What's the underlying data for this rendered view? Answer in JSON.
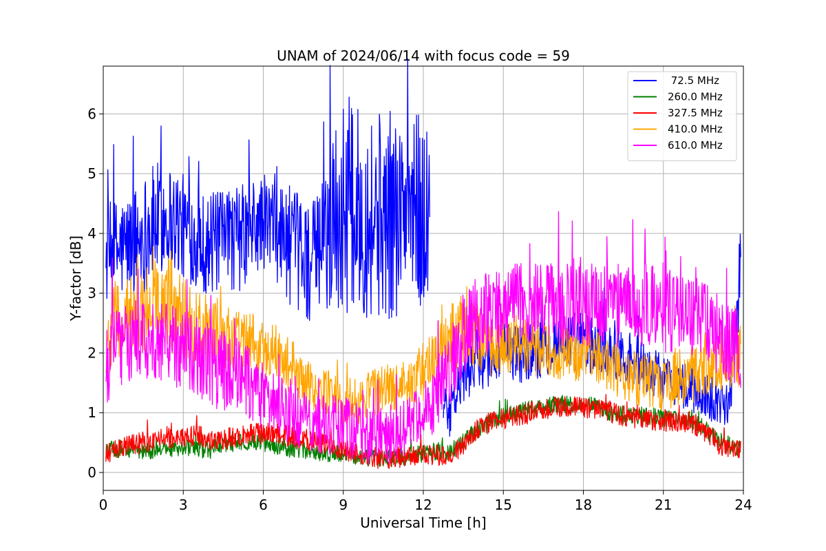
{
  "chart_data": {
    "type": "line",
    "title": "UNAM of 2024/06/14 with focus code = 59",
    "xlabel": "Universal Time [h]",
    "ylabel": "Y-factor [dB]",
    "xlim": [
      0,
      24
    ],
    "ylim": [
      -0.3,
      6.8
    ],
    "xticks": [
      0,
      3,
      6,
      9,
      12,
      15,
      18,
      21,
      24
    ],
    "yticks": [
      0,
      1,
      2,
      3,
      4,
      5,
      6
    ],
    "grid": true,
    "legend_position": "top-right",
    "x": [
      0.1,
      0.5,
      1.0,
      1.5,
      2.0,
      2.5,
      3.0,
      3.5,
      4.0,
      4.5,
      5.0,
      5.5,
      6.0,
      6.5,
      7.0,
      7.5,
      8.0,
      8.5,
      9.0,
      9.5,
      10.0,
      10.5,
      11.0,
      11.5,
      12.0,
      12.5,
      13.0,
      13.5,
      14.0,
      14.5,
      15.0,
      15.5,
      16.0,
      16.5,
      17.0,
      17.5,
      18.0,
      18.5,
      19.0,
      19.5,
      20.0,
      20.5,
      21.0,
      21.5,
      22.0,
      22.5,
      23.0,
      23.5,
      23.9
    ],
    "series": [
      {
        "name": " 72.5 MHz",
        "color": "#0000ff",
        "mean": [
          3.6,
          3.7,
          3.8,
          4.0,
          4.2,
          4.3,
          4.1,
          3.9,
          3.8,
          3.9,
          3.9,
          4.0,
          4.2,
          4.1,
          3.8,
          3.6,
          3.5,
          4.2,
          4.4,
          4.4,
          4.3,
          4.3,
          4.3,
          4.4,
          4.3,
          null,
          1.0,
          1.6,
          1.9,
          1.9,
          2.0,
          2.0,
          2.0,
          2.1,
          2.2,
          2.2,
          2.2,
          2.1,
          2.1,
          2.0,
          1.8,
          1.7,
          1.6,
          1.5,
          1.4,
          1.3,
          1.2,
          1.2,
          3.5
        ],
        "spread": [
          0.9,
          0.9,
          0.9,
          1.0,
          1.0,
          0.9,
          0.9,
          0.8,
          0.9,
          0.8,
          0.9,
          0.9,
          0.8,
          0.9,
          1.0,
          1.0,
          1.1,
          1.6,
          1.8,
          1.7,
          1.8,
          1.8,
          1.7,
          1.8,
          1.7,
          null,
          0.4,
          0.5,
          0.5,
          0.5,
          0.5,
          0.5,
          0.5,
          0.5,
          0.5,
          0.5,
          0.5,
          0.5,
          0.5,
          0.5,
          0.5,
          0.4,
          0.4,
          0.4,
          0.4,
          0.4,
          0.4,
          0.4,
          0.7
        ]
      },
      {
        "name": "260.0 MHz",
        "color": "#008000",
        "mean": [
          0.35,
          0.4,
          0.38,
          0.35,
          0.35,
          0.38,
          0.4,
          0.38,
          0.38,
          0.45,
          0.5,
          0.52,
          0.5,
          0.45,
          0.4,
          0.38,
          0.35,
          0.32,
          0.3,
          0.28,
          0.25,
          0.22,
          0.25,
          0.28,
          0.32,
          0.35,
          0.35,
          0.5,
          0.7,
          0.85,
          0.95,
          1.0,
          1.05,
          1.1,
          1.15,
          1.15,
          1.15,
          1.1,
          1.0,
          0.95,
          0.95,
          0.95,
          0.9,
          0.9,
          0.9,
          0.75,
          0.55,
          0.45,
          0.4
        ],
        "spread": [
          0.15,
          0.15,
          0.15,
          0.15,
          0.15,
          0.15,
          0.15,
          0.15,
          0.15,
          0.15,
          0.15,
          0.15,
          0.15,
          0.15,
          0.15,
          0.15,
          0.15,
          0.15,
          0.15,
          0.15,
          0.15,
          0.15,
          0.15,
          0.15,
          0.15,
          0.15,
          0.15,
          0.15,
          0.15,
          0.15,
          0.15,
          0.15,
          0.15,
          0.15,
          0.15,
          0.15,
          0.15,
          0.15,
          0.15,
          0.15,
          0.15,
          0.15,
          0.15,
          0.15,
          0.15,
          0.15,
          0.15,
          0.15,
          0.15
        ]
      },
      {
        "name": "327.5 MHz",
        "color": "#ff0000",
        "mean": [
          0.3,
          0.4,
          0.45,
          0.5,
          0.55,
          0.58,
          0.6,
          0.62,
          0.55,
          0.55,
          0.6,
          0.65,
          0.65,
          0.65,
          0.6,
          0.55,
          0.5,
          0.45,
          0.4,
          0.3,
          0.25,
          0.22,
          0.25,
          0.28,
          0.3,
          0.3,
          0.28,
          0.45,
          0.7,
          0.85,
          0.9,
          0.95,
          1.0,
          1.05,
          1.1,
          1.1,
          1.1,
          1.05,
          1.0,
          0.95,
          0.9,
          0.9,
          0.85,
          0.85,
          0.85,
          0.7,
          0.5,
          0.4,
          0.35
        ],
        "spread": [
          0.18,
          0.18,
          0.18,
          0.18,
          0.18,
          0.18,
          0.18,
          0.18,
          0.18,
          0.18,
          0.18,
          0.18,
          0.18,
          0.18,
          0.18,
          0.18,
          0.18,
          0.18,
          0.18,
          0.18,
          0.18,
          0.18,
          0.18,
          0.18,
          0.18,
          0.18,
          0.18,
          0.18,
          0.18,
          0.18,
          0.18,
          0.18,
          0.18,
          0.18,
          0.18,
          0.18,
          0.18,
          0.18,
          0.18,
          0.18,
          0.18,
          0.18,
          0.18,
          0.18,
          0.18,
          0.18,
          0.18,
          0.18,
          0.18
        ]
      },
      {
        "name": "410.0 MHz",
        "color": "#ffa500",
        "mean": [
          2.0,
          2.6,
          2.6,
          2.7,
          2.7,
          2.8,
          2.6,
          2.4,
          2.4,
          2.3,
          2.2,
          2.2,
          2.1,
          2.0,
          1.8,
          1.5,
          1.4,
          1.3,
          1.2,
          1.2,
          1.3,
          1.4,
          1.4,
          1.5,
          1.7,
          1.9,
          2.2,
          2.4,
          2.3,
          2.1,
          2.1,
          2.2,
          2.1,
          2.1,
          2.0,
          2.0,
          2.0,
          2.0,
          1.8,
          1.7,
          1.5,
          1.5,
          1.5,
          1.6,
          1.6,
          1.7,
          1.8,
          1.9,
          2.0
        ],
        "spread": [
          0.6,
          0.7,
          0.7,
          0.7,
          0.8,
          0.8,
          0.7,
          0.6,
          0.6,
          0.6,
          0.5,
          0.5,
          0.5,
          0.5,
          0.5,
          0.4,
          0.4,
          0.4,
          0.4,
          0.4,
          0.4,
          0.4,
          0.4,
          0.4,
          0.5,
          0.5,
          0.6,
          0.6,
          0.6,
          0.5,
          0.5,
          0.5,
          0.5,
          0.5,
          0.5,
          0.5,
          0.5,
          0.5,
          0.5,
          0.5,
          0.5,
          0.5,
          0.5,
          0.5,
          0.5,
          0.5,
          0.5,
          0.5,
          0.6
        ]
      },
      {
        "name": "610.0 MHz",
        "color": "#ff00ff",
        "mean": [
          1.8,
          2.1,
          2.2,
          2.3,
          2.2,
          2.2,
          2.0,
          1.9,
          1.8,
          1.7,
          1.6,
          1.5,
          1.3,
          1.1,
          1.0,
          0.9,
          0.8,
          0.8,
          0.8,
          0.7,
          0.6,
          0.6,
          0.7,
          0.8,
          1.0,
          1.3,
          1.8,
          2.3,
          2.6,
          2.7,
          2.8,
          2.8,
          2.8,
          2.8,
          2.8,
          2.8,
          2.8,
          2.8,
          2.8,
          2.8,
          2.8,
          2.8,
          2.7,
          2.7,
          2.6,
          2.5,
          2.3,
          2.1,
          2.0
        ],
        "spread": [
          0.7,
          0.7,
          0.7,
          0.7,
          0.7,
          0.7,
          0.7,
          0.7,
          0.7,
          0.7,
          0.7,
          0.6,
          0.6,
          0.6,
          0.6,
          0.5,
          0.5,
          0.5,
          0.5,
          0.5,
          0.5,
          0.5,
          0.5,
          0.5,
          0.5,
          0.6,
          0.7,
          0.7,
          0.7,
          0.7,
          0.7,
          0.7,
          0.7,
          0.7,
          0.7,
          0.7,
          0.7,
          0.7,
          0.7,
          0.7,
          0.7,
          0.7,
          0.7,
          0.7,
          0.7,
          0.7,
          0.7,
          0.7,
          0.7
        ]
      }
    ]
  }
}
